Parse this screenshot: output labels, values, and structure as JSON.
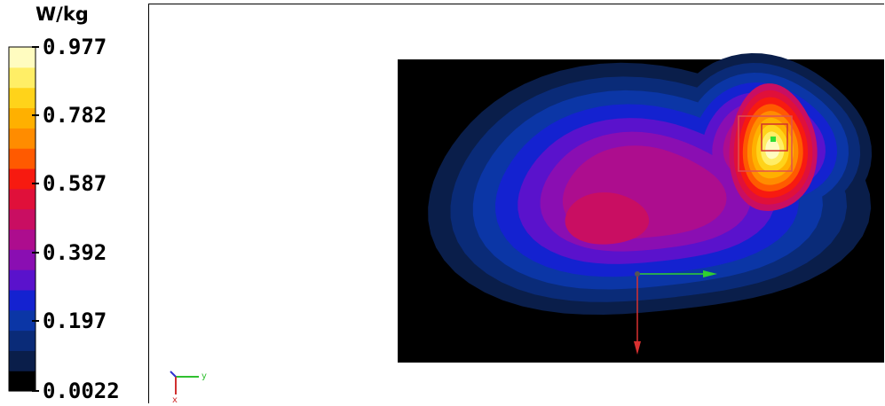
{
  "chart_data": {
    "type": "heatmap",
    "title": "",
    "quantity_unit": "W/kg",
    "colorbar": {
      "tick_labels": [
        "0.977",
        "0.782",
        "0.587",
        "0.392",
        "0.197",
        "0.0022"
      ],
      "colors": [
        "#000000",
        "#0a1e4a",
        "#0a2b78",
        "#0b36a6",
        "#1422d0",
        "#5a12cc",
        "#8a0eb2",
        "#ad0d8e",
        "#c90e62",
        "#e0103a",
        "#f71a10",
        "#ff5a00",
        "#ff8c00",
        "#ffb000",
        "#ffd31a",
        "#ffee66",
        "#fffcc0"
      ]
    },
    "peak_value": 0.977,
    "min_value": 0.0022,
    "triad_axes": [
      "y",
      "x"
    ],
    "colors": {
      "background": "#000000",
      "x_axis": "#d83030",
      "y_axis": "#30d030"
    }
  }
}
